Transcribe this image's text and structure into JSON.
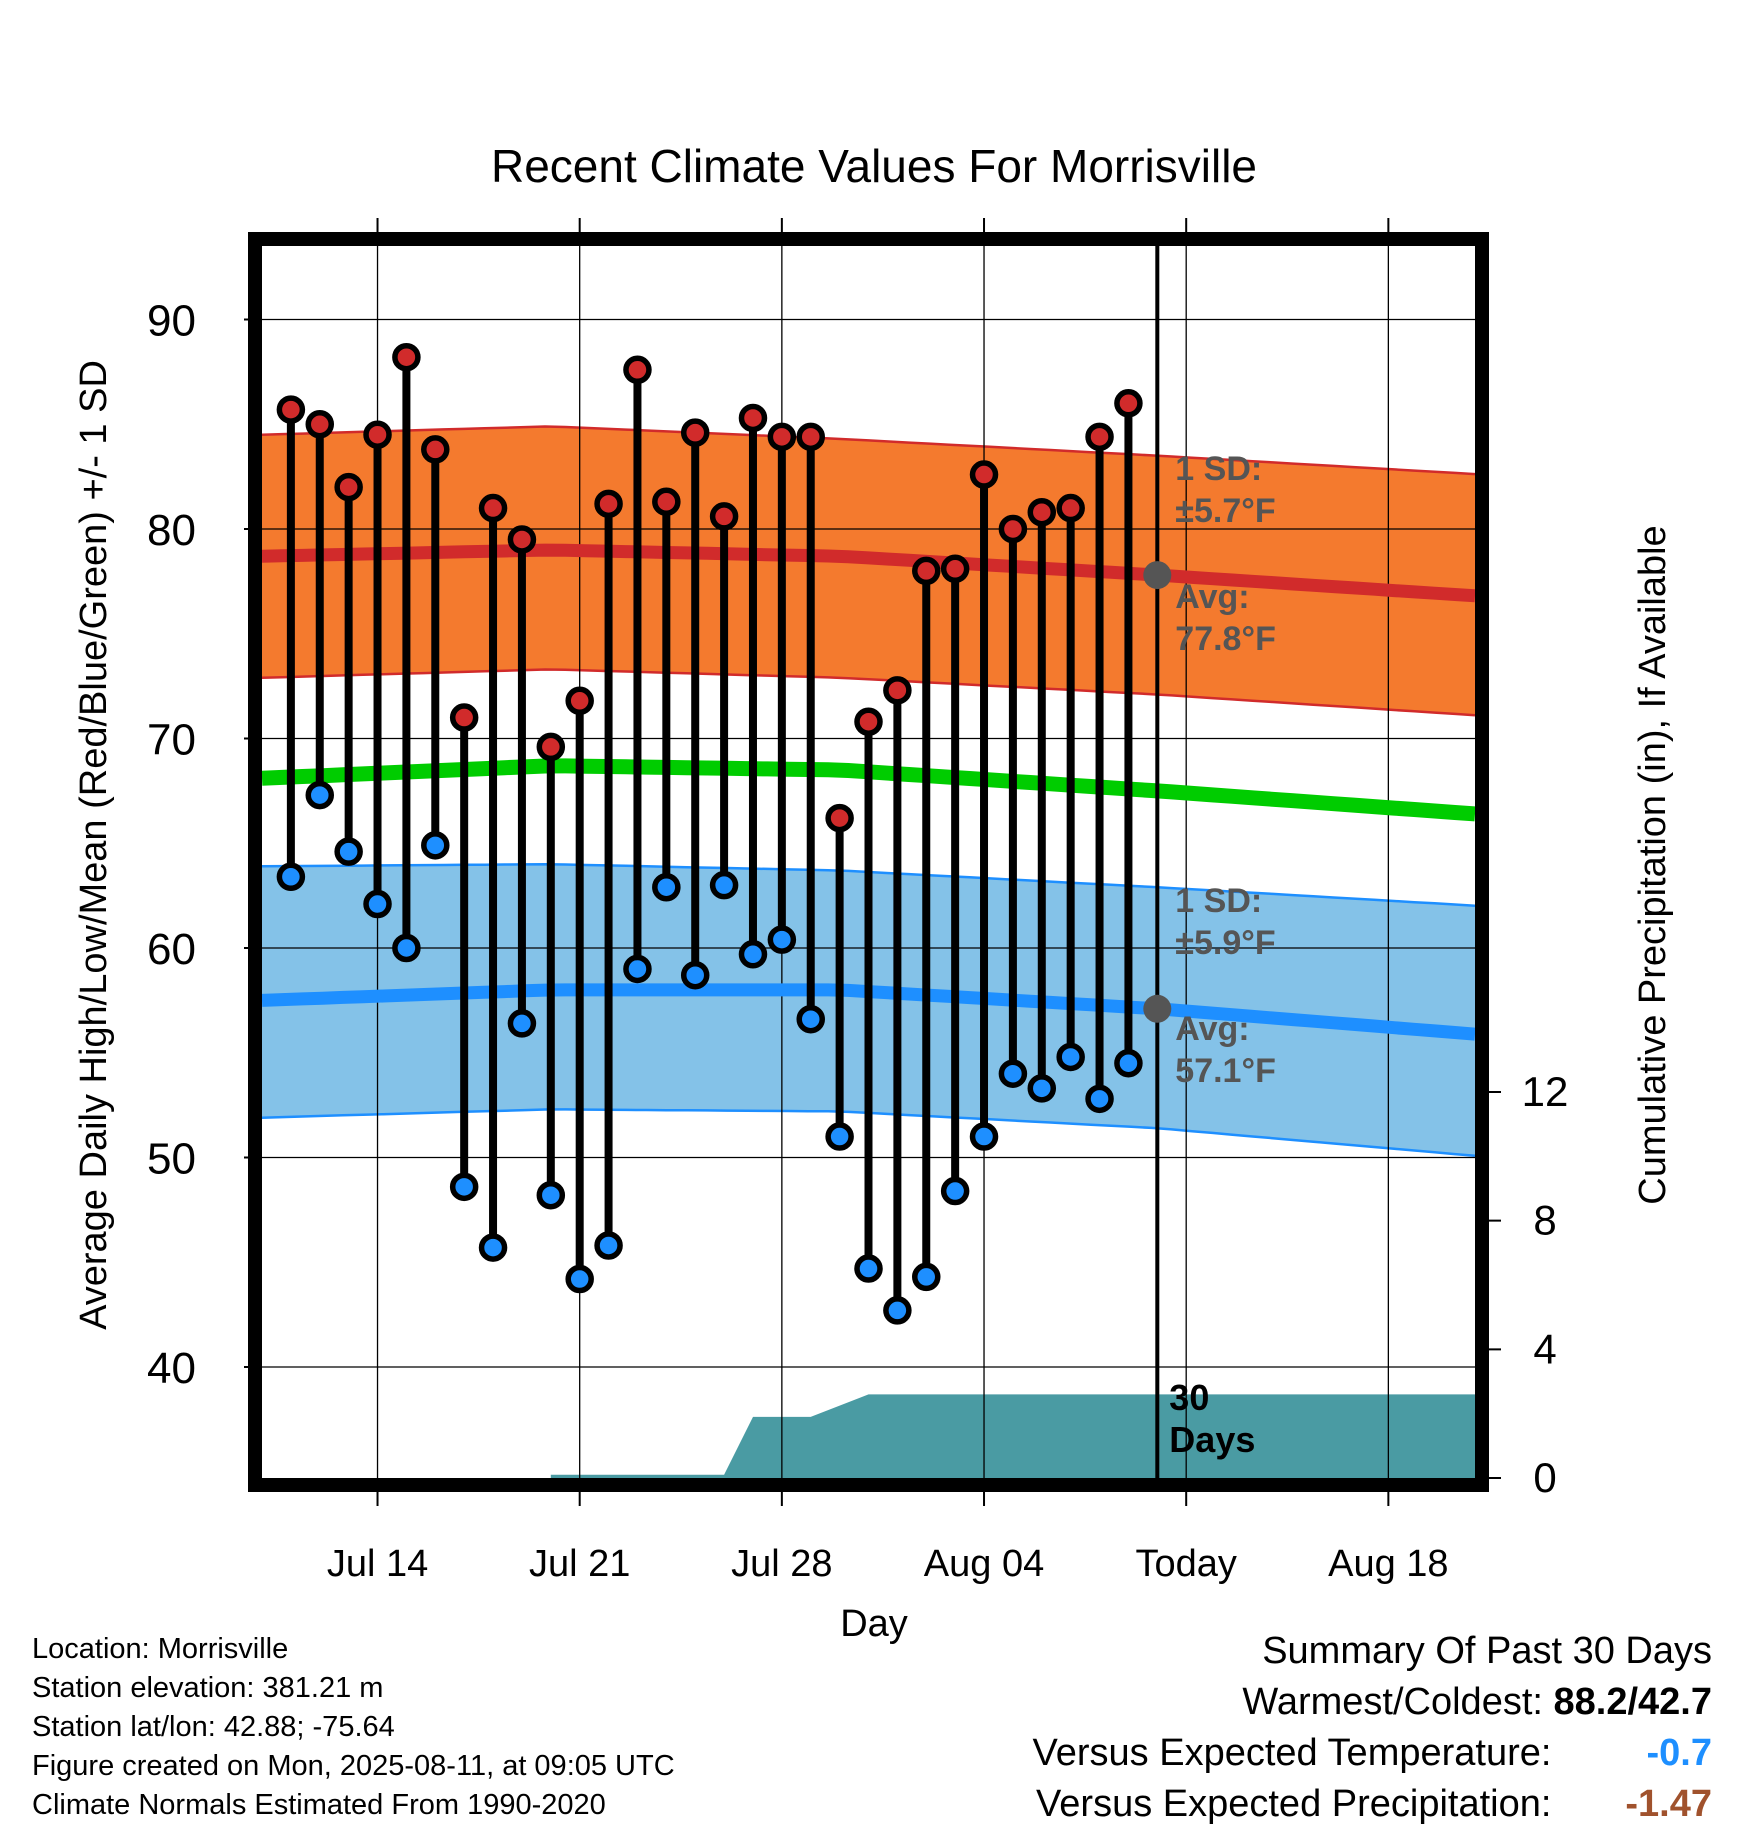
{
  "chart_data": {
    "type": "line",
    "title": "Recent Climate Values For Morrisville",
    "xlabel": "Day",
    "ylabel": "Average Daily High/Low/Mean (Red/Blue/Green) +/- 1 SD",
    "y2label": "Cumulative Precipitation (in), If Available",
    "x_ticks": [
      "Jul 14",
      "Jul 21",
      "Jul 28",
      "Aug 04",
      "Today",
      "Aug 18"
    ],
    "x_range": [
      "2025-07-10",
      "2025-08-21"
    ],
    "ylim": [
      35,
      90
    ],
    "y_ticks": [
      40,
      50,
      60,
      70,
      80,
      90
    ],
    "y2lim": [
      0,
      15
    ],
    "y2_ticks": [
      0,
      4,
      8,
      12
    ],
    "grid": true,
    "colors": {
      "high": "#d12b2b",
      "high_band": "#f47a2e",
      "low": "#1e8fff",
      "low_band": "#84c2e8",
      "mean": "#00cc00",
      "precip": "#4a9ba3",
      "avg_marker": "#555555"
    },
    "dates": [
      "2025-07-11",
      "2025-07-12",
      "2025-07-13",
      "2025-07-14",
      "2025-07-15",
      "2025-07-16",
      "2025-07-17",
      "2025-07-18",
      "2025-07-19",
      "2025-07-20",
      "2025-07-21",
      "2025-07-22",
      "2025-07-23",
      "2025-07-24",
      "2025-07-25",
      "2025-07-26",
      "2025-07-27",
      "2025-07-28",
      "2025-07-29",
      "2025-07-30",
      "2025-07-31",
      "2025-08-01",
      "2025-08-02",
      "2025-08-03",
      "2025-08-04",
      "2025-08-05",
      "2025-08-06",
      "2025-08-07",
      "2025-08-08",
      "2025-08-09",
      "2025-08-10"
    ],
    "observed_high": [
      85.7,
      85.0,
      82.0,
      84.5,
      88.2,
      83.8,
      71.0,
      81.0,
      79.5,
      69.6,
      71.8,
      81.2,
      87.6,
      81.3,
      84.6,
      80.6,
      85.3,
      84.4,
      84.4,
      66.2,
      70.8,
      72.3,
      78.0,
      78.1,
      82.6,
      80.0,
      80.8,
      81.0,
      84.4,
      86.0,
      null
    ],
    "observed_low": [
      63.4,
      67.3,
      64.6,
      62.1,
      60.0,
      64.9,
      48.6,
      45.7,
      56.4,
      48.2,
      44.2,
      45.8,
      59.0,
      62.9,
      58.7,
      63.0,
      59.7,
      60.4,
      56.6,
      51.0,
      44.7,
      42.7,
      44.3,
      48.4,
      51.0,
      54.0,
      53.3,
      54.8,
      52.8,
      54.5,
      null
    ],
    "normal_dates": [
      "2025-07-10",
      "2025-07-20",
      "2025-07-30",
      "2025-08-10",
      "2025-08-20"
    ],
    "normal_high": [
      78.7,
      79.0,
      78.7,
      77.8,
      76.9
    ],
    "normal_high_sd_band": [
      [
        72.9,
        84.5
      ],
      [
        73.3,
        84.9
      ],
      [
        72.9,
        84.3
      ],
      [
        72.1,
        83.5
      ],
      [
        71.2,
        82.7
      ]
    ],
    "normal_mean": [
      68.1,
      68.7,
      68.5,
      67.5,
      66.5
    ],
    "normal_low": [
      57.5,
      58.0,
      58.0,
      57.1,
      56.0
    ],
    "normal_low_sd_band": [
      [
        51.9,
        63.9
      ],
      [
        52.3,
        64.0
      ],
      [
        52.2,
        63.7
      ],
      [
        51.4,
        62.9
      ],
      [
        50.2,
        62.1
      ]
    ],
    "precip_cumulative": {
      "dates": [
        "2025-07-10",
        "2025-07-20",
        "2025-07-20",
        "2025-07-26",
        "2025-07-27",
        "2025-07-29",
        "2025-07-31",
        "2025-08-10"
      ],
      "values": [
        0,
        0,
        0.1,
        0.1,
        1.9,
        1.9,
        2.6,
        2.6
      ]
    },
    "today_marker": "2025-08-10",
    "annotations": {
      "high_sd_label": "1 SD:",
      "high_sd_value": "±5.7°F",
      "high_avg_label": "Avg:",
      "high_avg_value": "77.8°F",
      "low_sd_label": "1 SD:",
      "low_sd_value": "±5.9°F",
      "low_avg_label": "Avg:",
      "low_avg_value": "57.1°F",
      "window_label_1": "30",
      "window_label_2": "Days"
    }
  },
  "info": {
    "location": "Location: Morrisville",
    "elevation": "Station elevation: 381.21 m",
    "latlon": "Station lat/lon: 42.88; -75.64",
    "created": "Figure created on Mon, 2025-08-11, at 09:05 UTC",
    "normals": "Climate Normals Estimated From 1990-2020"
  },
  "summary": {
    "title": "Summary Of Past 30 Days",
    "warm_cold_label": "Warmest/Coldest:",
    "warm_cold_value": "88.2/42.7",
    "temp_label": "Versus Expected Temperature:",
    "temp_value": "-0.7",
    "temp_color": "#1e8fff",
    "precip_label": "Versus Expected Precipitation:",
    "precip_value": "-1.47",
    "precip_color": "#a0522d"
  }
}
